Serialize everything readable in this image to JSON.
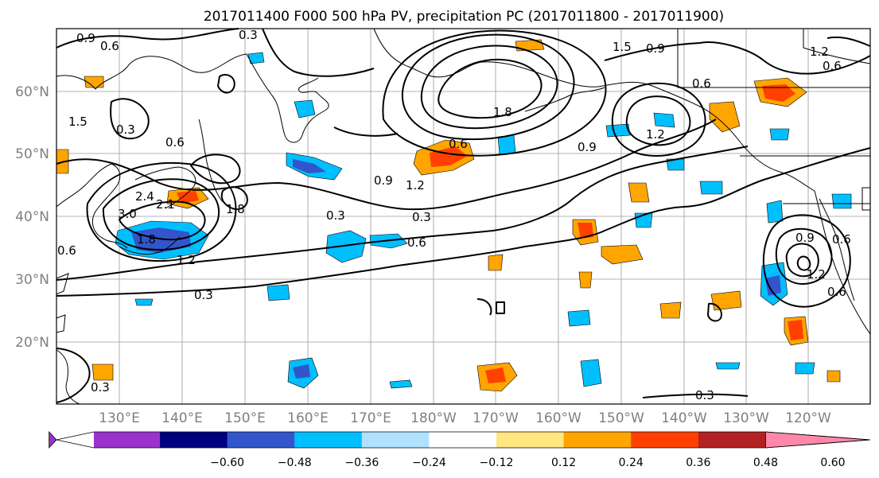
{
  "title": "2017011400 F000 500 hPa PV, precipitation PC (2017011800 - 2017011900)",
  "lat_labels": [
    "60°N",
    "50°N",
    "40°N",
    "30°N",
    "20°N"
  ],
  "lon_labels": [
    "130°E",
    "140°E",
    "150°E",
    "160°E",
    "170°E",
    "180°W",
    "170°W",
    "160°W",
    "150°W",
    "140°W",
    "130°W",
    "120°W"
  ],
  "colorbar": {
    "colors": [
      "#9933cc",
      "#000080",
      "#3355cc",
      "#00bfff",
      "#b0e2ff",
      "#ffffff",
      "#ffe680",
      "#ffa500",
      "#ff4000",
      "#b22222",
      "#ff88aa"
    ],
    "tick_labels": [
      "−0.60",
      "−0.48",
      "−0.36",
      "−0.24",
      "−0.12",
      "0.12",
      "0.24",
      "0.36",
      "0.48",
      "0.60"
    ]
  },
  "contour_labels": {
    "c1": "0.9",
    "c2": "0.6",
    "c3": "0.3",
    "c4": "0.6",
    "c5": "1.5",
    "c6": "0.9",
    "c7": "1.2",
    "c8": "1.8",
    "c9": "1.2",
    "c10": "0.6",
    "c11": "0.6",
    "c12": "0.3",
    "c13": "0.6",
    "c14": "1.8",
    "c15": "2.4",
    "c16": "3.0",
    "c17": "2.1",
    "c18": "1.8",
    "c19": "1.2",
    "c20": "0.9",
    "c21": "1.2",
    "c22": "0.6",
    "c23": "0.3",
    "c24": "0.3",
    "c25": "0.6",
    "c26": "0.3",
    "c27": "0.9",
    "c28": "1.2",
    "c29": "0.6",
    "c30": "0.9",
    "c31": "0.6",
    "c32": "1.5",
    "c33": "0.3",
    "c34": "0.3"
  }
}
